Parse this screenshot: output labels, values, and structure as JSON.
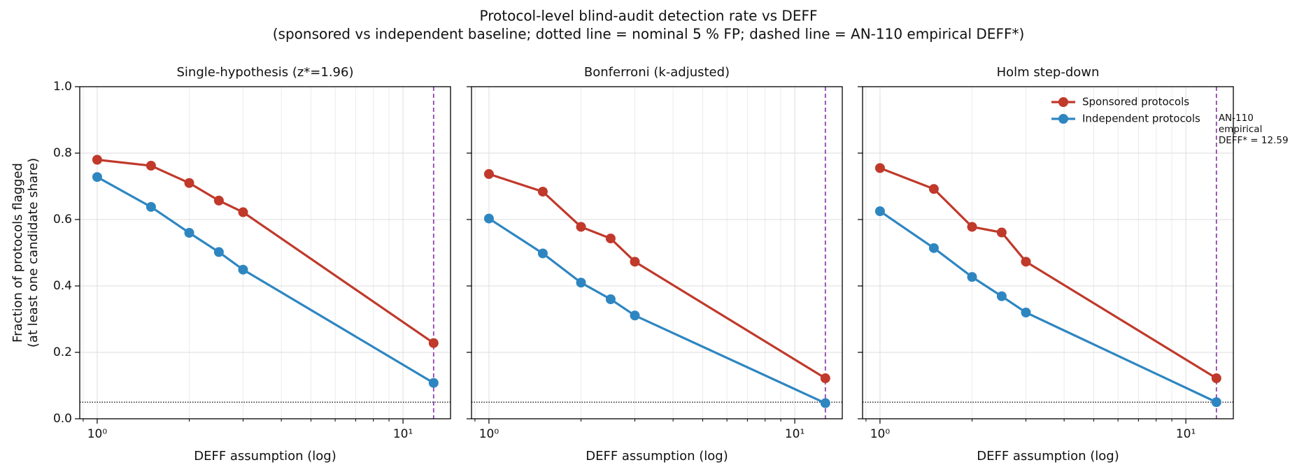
{
  "figure": {
    "title": "Protocol-level blind-audit detection rate vs DEFF",
    "subtitle": "(sponsored vs independent baseline; dotted line = nominal 5 % FP; dashed line = AN-110 empirical DEFF*)"
  },
  "chart_data": [
    {
      "type": "line",
      "title": "Single-hypothesis (z*=1.96)",
      "xlabel": "DEFF assumption (log)",
      "ylabel": [
        "Fraction of protocols flagged",
        "(at least one candidate share)"
      ],
      "xscale": "log",
      "xlim": [
        0.877,
        14.3
      ],
      "ylim": [
        0,
        1
      ],
      "xticks": [
        {
          "value": 1,
          "label": "10⁰"
        },
        {
          "value": 10,
          "label": "10¹"
        }
      ],
      "xminorticks": [
        0.9,
        2,
        3,
        4,
        5,
        6,
        7,
        8,
        9
      ],
      "yticks": [
        {
          "value": 0,
          "label": "0.0"
        },
        0.2,
        0.4,
        0.6,
        0.8,
        {
          "value": 1,
          "label": "1.0"
        }
      ],
      "grid": true,
      "hline": 0.05,
      "vline": 12.59,
      "vline_color": "#8e44ad",
      "x": [
        1,
        1.5,
        2,
        2.5,
        3,
        12.59
      ],
      "series": [
        {
          "color": "#c0392b",
          "values": [
            0.78,
            0.762,
            0.71,
            0.657,
            0.622,
            0.228
          ]
        },
        {
          "color": "#2e86c1",
          "values": [
            0.728,
            0.638,
            0.56,
            0.502,
            0.449,
            0.108
          ]
        }
      ]
    },
    {
      "type": "line",
      "title": "Bonferroni (k-adjusted)",
      "xlabel": "DEFF assumption (log)",
      "xscale": "log",
      "xlim": [
        0.877,
        14.3
      ],
      "ylim": [
        0,
        1
      ],
      "xticks": [
        {
          "value": 1,
          "label": "10⁰"
        },
        {
          "value": 10,
          "label": "10¹"
        }
      ],
      "xminorticks": [
        0.9,
        2,
        3,
        4,
        5,
        6,
        7,
        8,
        9
      ],
      "yticks": [
        0,
        0.2,
        0.4,
        0.6,
        0.8,
        1
      ],
      "ytick_labels": false,
      "grid": true,
      "hline": 0.05,
      "vline": 12.59,
      "vline_color": "#8e44ad",
      "x": [
        1,
        1.5,
        2,
        2.5,
        3,
        12.59
      ],
      "series": [
        {
          "color": "#c0392b",
          "values": [
            0.737,
            0.684,
            0.578,
            0.543,
            0.473,
            0.122
          ]
        },
        {
          "color": "#2e86c1",
          "values": [
            0.603,
            0.498,
            0.41,
            0.36,
            0.311,
            0.047
          ]
        }
      ]
    },
    {
      "type": "line",
      "title": "Holm step-down",
      "xlabel": "DEFF assumption (log)",
      "xscale": "log",
      "xlim": [
        0.877,
        14.3
      ],
      "ylim": [
        0,
        1
      ],
      "xticks": [
        {
          "value": 1,
          "label": "10⁰"
        },
        {
          "value": 10,
          "label": "10¹"
        }
      ],
      "xminorticks": [
        0.9,
        2,
        3,
        4,
        5,
        6,
        7,
        8,
        9
      ],
      "yticks": [
        0,
        0.2,
        0.4,
        0.6,
        0.8,
        1
      ],
      "ytick_labels": false,
      "grid": true,
      "hline": 0.05,
      "vline": 12.59,
      "vline_color": "#8e44ad",
      "annotation": [
        "AN-110",
        "empirical",
        "DEFF* = 12.59"
      ],
      "legend": "upper right",
      "x": [
        1,
        1.5,
        2,
        2.5,
        3,
        12.59
      ],
      "series": [
        {
          "name": "Sponsored protocols",
          "color": "#c0392b",
          "values": [
            0.755,
            0.692,
            0.578,
            0.561,
            0.473,
            0.122
          ]
        },
        {
          "name": "Independent protocols",
          "color": "#2e86c1",
          "values": [
            0.625,
            0.514,
            0.427,
            0.369,
            0.32,
            0.05
          ]
        }
      ]
    }
  ]
}
